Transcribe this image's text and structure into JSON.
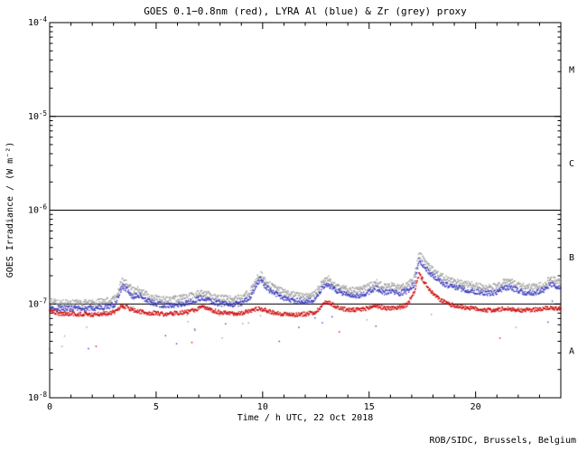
{
  "chart_data": {
    "type": "scatter",
    "title": "GOES 0.1−0.8nm (red), LYRA Al (blue) & Zr (grey) proxy",
    "xlabel": "Time / h UTC, 22 Oct 2018",
    "ylabel": "GOES Irradiance / (W m⁻²)",
    "footer": "ROB/SIDC, Brussels, Belgium",
    "title_color": "#8b1a1a",
    "footer_color": "#8b1a1a",
    "axis_color": "#000000",
    "xlim": [
      0,
      24
    ],
    "x_major_ticks": [
      0,
      5,
      10,
      15,
      20
    ],
    "x_major_labels": [
      "0",
      "5",
      "10",
      "15",
      "20"
    ],
    "x_minor_step": 1,
    "yscale": "log",
    "ylim": [
      1e-08,
      0.0001
    ],
    "y_tick_labels": [
      {
        "value": 0.0001,
        "label": "10⁻⁴"
      },
      {
        "value": 1e-05,
        "label": "10⁻⁵"
      },
      {
        "value": 1e-06,
        "label": "10⁻⁶"
      },
      {
        "value": 1e-07,
        "label": "10⁻⁷"
      },
      {
        "value": 1e-08,
        "label": "10⁻⁸"
      }
    ],
    "hlines": [
      1e-05,
      1e-06,
      1e-07
    ],
    "flare_classes": [
      {
        "label": "M",
        "range": [
          1e-05,
          0.0001
        ]
      },
      {
        "label": "C",
        "range": [
          1e-06,
          1e-05
        ]
      },
      {
        "label": "B",
        "range": [
          1e-07,
          1e-06
        ]
      },
      {
        "label": "A",
        "range": [
          1e-08,
          1e-07
        ]
      }
    ],
    "series": [
      {
        "name": "GOES 0.1−0.8nm",
        "color": "#cc0000",
        "noise_dec": 0.022,
        "outlier_p": 0.004,
        "outlier_mult": [
          0.45,
          0.75
        ],
        "points": [
          [
            0,
            8.5e-08
          ],
          [
            0.3,
            8e-08
          ],
          [
            0.7,
            7.8e-08
          ],
          [
            1.0,
            8e-08
          ],
          [
            1.3,
            7.7e-08
          ],
          [
            1.7,
            7.9e-08
          ],
          [
            2.0,
            7.6e-08
          ],
          [
            2.4,
            7.8e-08
          ],
          [
            2.8,
            8e-08
          ],
          [
            3.1,
            8.3e-08
          ],
          [
            3.4,
            9.6e-08
          ],
          [
            3.6,
            9.2e-08
          ],
          [
            3.9,
            8.6e-08
          ],
          [
            4.2,
            8.3e-08
          ],
          [
            4.6,
            8e-08
          ],
          [
            5.0,
            8e-08
          ],
          [
            5.4,
            7.8e-08
          ],
          [
            5.8,
            7.9e-08
          ],
          [
            6.2,
            8.1e-08
          ],
          [
            6.6,
            8.3e-08
          ],
          [
            7.0,
            8.9e-08
          ],
          [
            7.2,
            9.3e-08
          ],
          [
            7.5,
            8.7e-08
          ],
          [
            8.0,
            8.1e-08
          ],
          [
            8.5,
            7.9e-08
          ],
          [
            9.0,
            8e-08
          ],
          [
            9.4,
            8.4e-08
          ],
          [
            9.8,
            9e-08
          ],
          [
            10.1,
            8.6e-08
          ],
          [
            10.5,
            8.1e-08
          ],
          [
            11.0,
            7.8e-08
          ],
          [
            11.5,
            7.7e-08
          ],
          [
            12.0,
            7.8e-08
          ],
          [
            12.5,
            8.2e-08
          ],
          [
            12.9,
            1.02e-07
          ],
          [
            13.1,
            1.05e-07
          ],
          [
            13.4,
            9.5e-08
          ],
          [
            13.8,
            8.8e-08
          ],
          [
            14.2,
            8.6e-08
          ],
          [
            14.6,
            8.7e-08
          ],
          [
            15.0,
            9.1e-08
          ],
          [
            15.3,
            9.6e-08
          ],
          [
            15.7,
            9.1e-08
          ],
          [
            16.0,
            9e-08
          ],
          [
            16.4,
            9.2e-08
          ],
          [
            16.8,
            9.8e-08
          ],
          [
            17.1,
            1.3e-07
          ],
          [
            17.35,
            2.1e-07
          ],
          [
            17.6,
            1.7e-07
          ],
          [
            17.9,
            1.35e-07
          ],
          [
            18.3,
            1.12e-07
          ],
          [
            18.7,
            1e-07
          ],
          [
            19.1,
            9.5e-08
          ],
          [
            19.5,
            9.2e-08
          ],
          [
            20.0,
            8.9e-08
          ],
          [
            20.5,
            8.6e-08
          ],
          [
            21.0,
            8.6e-08
          ],
          [
            21.4,
            9e-08
          ],
          [
            21.8,
            8.7e-08
          ],
          [
            22.2,
            8.6e-08
          ],
          [
            22.6,
            8.6e-08
          ],
          [
            23.0,
            8.8e-08
          ],
          [
            23.4,
            9.1e-08
          ],
          [
            23.8,
            9e-08
          ],
          [
            24,
            9e-08
          ]
        ]
      },
      {
        "name": "LYRA Al proxy",
        "color": "#3333bb",
        "noise_dec": 0.028,
        "outlier_p": 0.012,
        "outlier_mult": [
          0.35,
          0.75
        ],
        "points": [
          [
            0,
            9.2e-08
          ],
          [
            0.4,
            9e-08
          ],
          [
            0.8,
            8.9e-08
          ],
          [
            1.2,
            9.1e-08
          ],
          [
            1.6,
            8.9e-08
          ],
          [
            2.0,
            9e-08
          ],
          [
            2.4,
            9.2e-08
          ],
          [
            2.8,
            9.5e-08
          ],
          [
            3.1,
            1e-07
          ],
          [
            3.4,
            1.55e-07
          ],
          [
            3.6,
            1.45e-07
          ],
          [
            3.9,
            1.2e-07
          ],
          [
            4.2,
            1.25e-07
          ],
          [
            4.5,
            1.1e-07
          ],
          [
            4.8,
            1.03e-07
          ],
          [
            5.2,
            9.8e-08
          ],
          [
            5.6,
            9.6e-08
          ],
          [
            6.0,
            9.9e-08
          ],
          [
            6.4,
            1.02e-07
          ],
          [
            6.8,
            1.08e-07
          ],
          [
            7.1,
            1.16e-07
          ],
          [
            7.4,
            1.1e-07
          ],
          [
            7.8,
            1.03e-07
          ],
          [
            8.2,
            1e-07
          ],
          [
            8.6,
            9.9e-08
          ],
          [
            9.0,
            1.02e-07
          ],
          [
            9.4,
            1.15e-07
          ],
          [
            9.7,
            1.6e-07
          ],
          [
            9.9,
            1.85e-07
          ],
          [
            10.1,
            1.55e-07
          ],
          [
            10.4,
            1.35e-07
          ],
          [
            10.8,
            1.22e-07
          ],
          [
            11.2,
            1.12e-07
          ],
          [
            11.6,
            1.07e-07
          ],
          [
            12.0,
            1.06e-07
          ],
          [
            12.4,
            1.1e-07
          ],
          [
            12.9,
            1.55e-07
          ],
          [
            13.1,
            1.6e-07
          ],
          [
            13.4,
            1.42e-07
          ],
          [
            13.8,
            1.28e-07
          ],
          [
            14.2,
            1.22e-07
          ],
          [
            14.6,
            1.23e-07
          ],
          [
            15.0,
            1.35e-07
          ],
          [
            15.3,
            1.48e-07
          ],
          [
            15.7,
            1.33e-07
          ],
          [
            16.0,
            1.36e-07
          ],
          [
            16.4,
            1.3e-07
          ],
          [
            16.8,
            1.38e-07
          ],
          [
            17.1,
            1.6e-07
          ],
          [
            17.35,
            2.95e-07
          ],
          [
            17.6,
            2.5e-07
          ],
          [
            17.9,
            2.1e-07
          ],
          [
            18.3,
            1.75e-07
          ],
          [
            18.7,
            1.58e-07
          ],
          [
            19.1,
            1.5e-07
          ],
          [
            19.5,
            1.42e-07
          ],
          [
            20.0,
            1.36e-07
          ],
          [
            20.5,
            1.31e-07
          ],
          [
            21.0,
            1.32e-07
          ],
          [
            21.3,
            1.47e-07
          ],
          [
            21.6,
            1.52e-07
          ],
          [
            22.0,
            1.38e-07
          ],
          [
            22.4,
            1.31e-07
          ],
          [
            22.8,
            1.32e-07
          ],
          [
            23.2,
            1.4e-07
          ],
          [
            23.5,
            1.62e-07
          ],
          [
            23.8,
            1.52e-07
          ],
          [
            24,
            1.55e-07
          ]
        ]
      },
      {
        "name": "LYRA Zr proxy",
        "color": "#9a9a9a",
        "noise_dec": 0.035,
        "outlier_p": 0.02,
        "outlier_mult": [
          0.3,
          0.75
        ],
        "points": [
          [
            0,
            1.05e-07
          ],
          [
            0.4,
            1.03e-07
          ],
          [
            0.8,
            1.02e-07
          ],
          [
            1.2,
            1.04e-07
          ],
          [
            1.6,
            1.02e-07
          ],
          [
            2.0,
            1.03e-07
          ],
          [
            2.4,
            1.05e-07
          ],
          [
            2.8,
            1.09e-07
          ],
          [
            3.1,
            1.15e-07
          ],
          [
            3.4,
            1.8e-07
          ],
          [
            3.6,
            1.68e-07
          ],
          [
            3.9,
            1.38e-07
          ],
          [
            4.2,
            1.44e-07
          ],
          [
            4.5,
            1.27e-07
          ],
          [
            4.8,
            1.18e-07
          ],
          [
            5.2,
            1.13e-07
          ],
          [
            5.6,
            1.1e-07
          ],
          [
            6.0,
            1.14e-07
          ],
          [
            6.4,
            1.17e-07
          ],
          [
            6.8,
            1.24e-07
          ],
          [
            7.1,
            1.33e-07
          ],
          [
            7.4,
            1.26e-07
          ],
          [
            7.8,
            1.18e-07
          ],
          [
            8.2,
            1.15e-07
          ],
          [
            8.6,
            1.14e-07
          ],
          [
            9.0,
            1.17e-07
          ],
          [
            9.4,
            1.32e-07
          ],
          [
            9.7,
            1.84e-07
          ],
          [
            9.9,
            2.12e-07
          ],
          [
            10.1,
            1.78e-07
          ],
          [
            10.4,
            1.55e-07
          ],
          [
            10.8,
            1.4e-07
          ],
          [
            11.2,
            1.29e-07
          ],
          [
            11.6,
            1.23e-07
          ],
          [
            12.0,
            1.22e-07
          ],
          [
            12.4,
            1.27e-07
          ],
          [
            12.9,
            1.78e-07
          ],
          [
            13.1,
            1.84e-07
          ],
          [
            13.4,
            1.63e-07
          ],
          [
            13.8,
            1.47e-07
          ],
          [
            14.2,
            1.4e-07
          ],
          [
            14.6,
            1.41e-07
          ],
          [
            15.0,
            1.55e-07
          ],
          [
            15.3,
            1.7e-07
          ],
          [
            15.7,
            1.53e-07
          ],
          [
            16.0,
            1.56e-07
          ],
          [
            16.4,
            1.49e-07
          ],
          [
            16.8,
            1.59e-07
          ],
          [
            17.1,
            1.84e-07
          ],
          [
            17.35,
            3.4e-07
          ],
          [
            17.6,
            2.88e-07
          ],
          [
            17.9,
            2.42e-07
          ],
          [
            18.3,
            2.01e-07
          ],
          [
            18.7,
            1.82e-07
          ],
          [
            19.1,
            1.73e-07
          ],
          [
            19.5,
            1.63e-07
          ],
          [
            20.0,
            1.56e-07
          ],
          [
            20.5,
            1.51e-07
          ],
          [
            21.0,
            1.52e-07
          ],
          [
            21.3,
            1.69e-07
          ],
          [
            21.6,
            1.75e-07
          ],
          [
            22.0,
            1.59e-07
          ],
          [
            22.4,
            1.51e-07
          ],
          [
            22.8,
            1.52e-07
          ],
          [
            23.2,
            1.61e-07
          ],
          [
            23.5,
            1.86e-07
          ],
          [
            23.8,
            1.75e-07
          ],
          [
            24,
            1.78e-07
          ]
        ]
      }
    ]
  }
}
